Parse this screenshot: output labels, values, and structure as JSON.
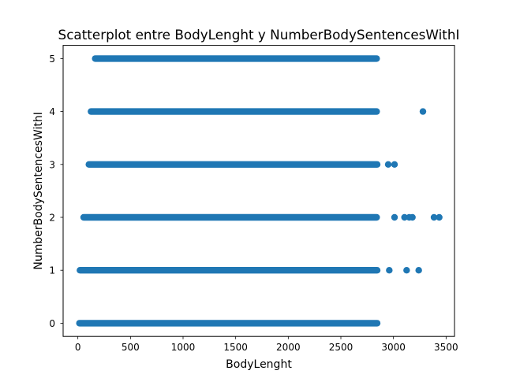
{
  "chart_data": {
    "type": "scatter",
    "title": "Scatterplot entre BodyLenght y NumberBodySentencesWithI",
    "xlabel": "BodyLenght",
    "ylabel": "NumberBodySentencesWithI",
    "xlim": [
      -140,
      3580
    ],
    "ylim": [
      -0.25,
      5.25
    ],
    "xticks": [
      0,
      500,
      1000,
      1500,
      2000,
      2500,
      3000,
      3500
    ],
    "yticks": [
      0,
      1,
      2,
      3,
      4,
      5
    ],
    "grid": false,
    "legend": "none",
    "marker_color": "#1f77b4",
    "series": [
      {
        "dense_ranges": [
          {
            "y": 5,
            "x_from": 165,
            "x_to": 2840
          },
          {
            "y": 4,
            "x_from": 125,
            "x_to": 2840
          },
          {
            "y": 3,
            "x_from": 105,
            "x_to": 2845
          },
          {
            "y": 2,
            "x_from": 55,
            "x_to": 2840
          },
          {
            "y": 1,
            "x_from": 20,
            "x_to": 2845
          },
          {
            "y": 0,
            "x_from": 15,
            "x_to": 2845
          }
        ],
        "points": [
          {
            "x": 3280,
            "y": 4
          },
          {
            "x": 2950,
            "y": 3
          },
          {
            "x": 3010,
            "y": 3
          },
          {
            "x": 3010,
            "y": 2
          },
          {
            "x": 3105,
            "y": 2
          },
          {
            "x": 3150,
            "y": 2
          },
          {
            "x": 3180,
            "y": 2
          },
          {
            "x": 3385,
            "y": 2
          },
          {
            "x": 3435,
            "y": 2
          },
          {
            "x": 2960,
            "y": 1
          },
          {
            "x": 3125,
            "y": 1
          },
          {
            "x": 3240,
            "y": 1
          }
        ]
      }
    ]
  }
}
